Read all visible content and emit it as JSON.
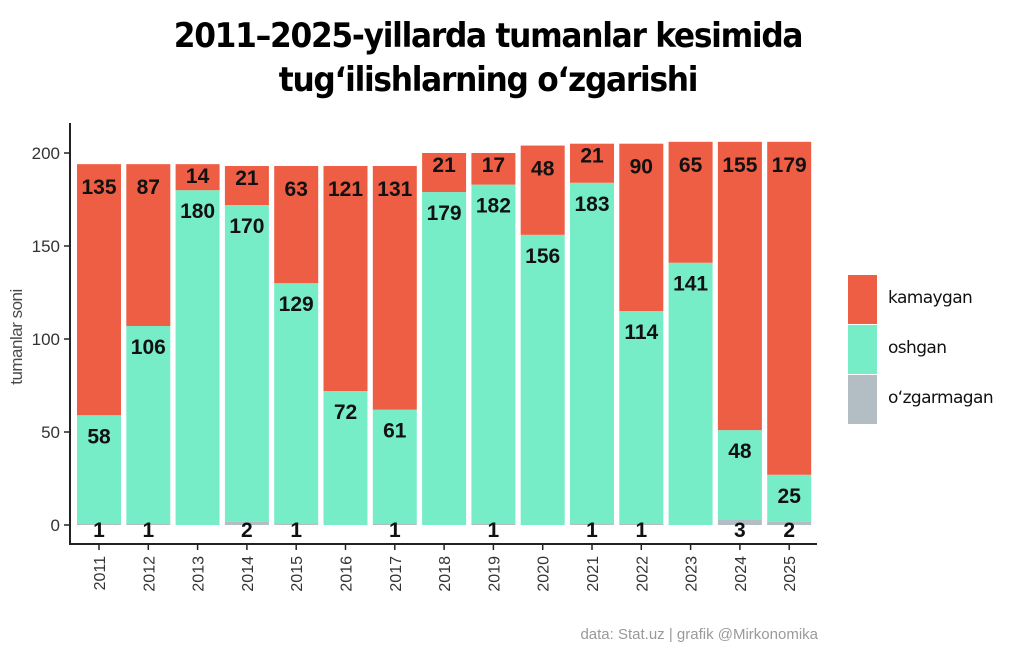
{
  "title": {
    "line1": "2011–2025-yillarda tumanlar kesimida",
    "line2": "tug‘ilishlarning o‘zgarishi"
  },
  "credit": "data: Stat.uz | grafik @Mirkonomika",
  "legend": [
    {
      "label": "kamaygan",
      "color": "#ED5E44"
    },
    {
      "label": "oshgan",
      "color": "#77EDC7"
    },
    {
      "label": "o‘zgarmagan",
      "color": "#B2BEC3"
    }
  ],
  "chart_data": {
    "type": "bar",
    "stacked": true,
    "title": "2011–2025-yillarda tumanlar kesimida tug‘ilishlarning o‘zgarishi",
    "xlabel": "",
    "ylabel": "tumanlar soni",
    "ylim": [
      0,
      210
    ],
    "yticks": [
      0,
      50,
      100,
      150,
      200
    ],
    "grid": false,
    "legend_position": "right",
    "categories": [
      "2011",
      "2012",
      "2013",
      "2014",
      "2015",
      "2016",
      "2017",
      "2018",
      "2019",
      "2020",
      "2021",
      "2022",
      "2023",
      "2024",
      "2025"
    ],
    "series": [
      {
        "name": "o‘zgarmagan",
        "color": "#B2BEC3",
        "values": [
          1,
          1,
          0,
          2,
          1,
          0,
          1,
          0,
          1,
          0,
          1,
          1,
          0,
          3,
          2
        ]
      },
      {
        "name": "oshgan",
        "color": "#77EDC7",
        "values": [
          58,
          106,
          180,
          170,
          129,
          72,
          61,
          179,
          182,
          156,
          183,
          114,
          141,
          48,
          25
        ]
      },
      {
        "name": "kamaygan",
        "color": "#ED5E44",
        "values": [
          135,
          87,
          14,
          21,
          63,
          121,
          131,
          21,
          17,
          48,
          21,
          90,
          65,
          155,
          179
        ]
      }
    ],
    "annotation": "data: Stat.uz | grafik @Mirkonomika"
  }
}
